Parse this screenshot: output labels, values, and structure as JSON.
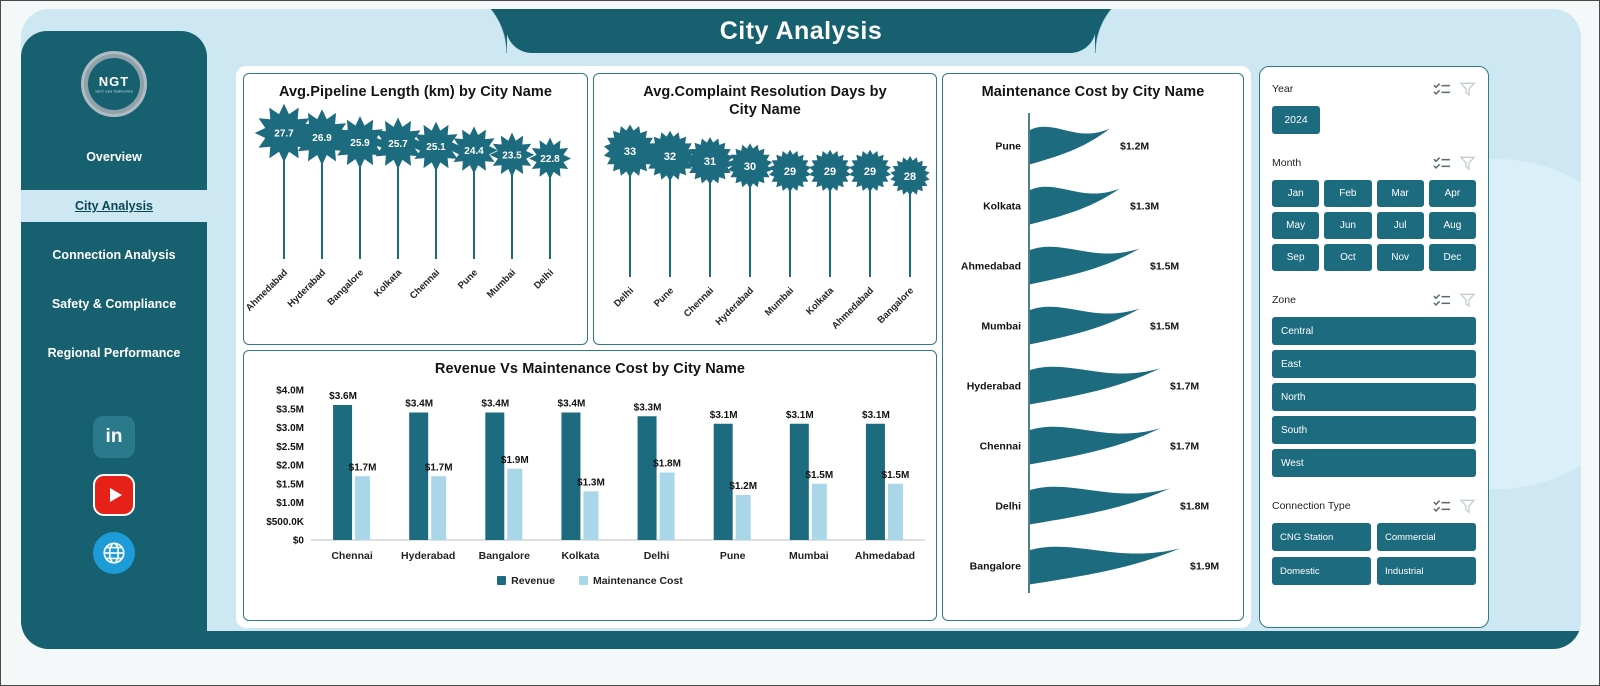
{
  "header": {
    "title": "City Analysis"
  },
  "sidebar": {
    "logo": {
      "text": "NGT",
      "caption": "NEXT GEN TEMPLATES"
    },
    "items": [
      {
        "label": "Overview",
        "active": false
      },
      {
        "label": "City Analysis",
        "active": true
      },
      {
        "label": "Connection Analysis",
        "active": false
      },
      {
        "label": "Safety & Compliance",
        "active": false
      },
      {
        "label": "Regional Performance",
        "active": false
      }
    ],
    "social_icons": [
      "linkedin-icon",
      "youtube-icon",
      "globe-icon"
    ]
  },
  "filters": {
    "year": {
      "label": "Year",
      "options": [
        "2024"
      ]
    },
    "month": {
      "label": "Month",
      "options": [
        "Jan",
        "Feb",
        "Mar",
        "Apr",
        "May",
        "Jun",
        "Jul",
        "Aug",
        "Sep",
        "Oct",
        "Nov",
        "Dec"
      ]
    },
    "zone": {
      "label": "Zone",
      "options": [
        "Central",
        "East",
        "North",
        "South",
        "West"
      ]
    },
    "connection_type": {
      "label": "Connection Type",
      "options": [
        "CNG Station",
        "Commercial",
        "Domestic",
        "Industrial"
      ]
    }
  },
  "colors": {
    "teal": "#1d6b7e",
    "teal_dark": "#17606f",
    "light_blue_bar": "#a9d6e8",
    "panel_blue": "#cde8f2"
  },
  "chart_data": [
    {
      "type": "bar",
      "subtype": "lollipop-star",
      "title": "Avg.Pipeline Length (km) by City Name",
      "categories": [
        "Ahmedabad",
        "Hyderabad",
        "Bangalore",
        "Kolkata",
        "Chennai",
        "Pune",
        "Mumbai",
        "Delhi"
      ],
      "values": [
        27.7,
        26.9,
        25.9,
        25.7,
        25.1,
        24.4,
        23.5,
        22.8
      ],
      "xlabel": "City Name",
      "ylabel": "Avg. Pipeline Length (km)",
      "grid": false,
      "legend_position": "none"
    },
    {
      "type": "bar",
      "subtype": "lollipop-burst",
      "title": "Avg.Complaint Resolution Days by City Name",
      "categories": [
        "Delhi",
        "Pune",
        "Chennai",
        "Hyderabad",
        "Mumbai",
        "Kolkata",
        "Ahmedabad",
        "Bangalore"
      ],
      "values": [
        33,
        32,
        31,
        30,
        29,
        29,
        29,
        28
      ],
      "xlabel": "City Name",
      "ylabel": "Avg. Complaint Resolution Days",
      "grid": false,
      "legend_position": "none"
    },
    {
      "type": "bar",
      "subtype": "grouped-column",
      "title": "Revenue Vs Maintenance Cost by City Name",
      "categories": [
        "Chennai",
        "Hyderabad",
        "Bangalore",
        "Kolkata",
        "Delhi",
        "Pune",
        "Mumbai",
        "Ahmedabad"
      ],
      "series": [
        {
          "name": "Revenue",
          "color": "#1d6b7e",
          "values": [
            3.6,
            3.4,
            3.4,
            3.4,
            3.3,
            3.1,
            3.1,
            3.1
          ],
          "labels": [
            "$3.6M",
            "$3.4M",
            "$3.4M",
            "$3.4M",
            "$3.3M",
            "$3.1M",
            "$3.1M",
            "$3.1M"
          ]
        },
        {
          "name": "Maintenance Cost",
          "color": "#a9d6e8",
          "values": [
            1.7,
            1.7,
            1.9,
            1.3,
            1.8,
            1.2,
            1.5,
            1.5
          ],
          "labels": [
            "$1.7M",
            "$1.7M",
            "$1.9M",
            "$1.3M",
            "$1.8M",
            "$1.2M",
            "$1.5M",
            "$1.5M"
          ]
        }
      ],
      "y_ticks": [
        "$4.0M",
        "$3.5M",
        "$3.0M",
        "$2.5M",
        "$2.0M",
        "$1.5M",
        "$1.0M",
        "$500.0K",
        "$0"
      ],
      "ylim": [
        0,
        4.0
      ],
      "grid": false,
      "legend_position": "bottom"
    },
    {
      "type": "bar",
      "subtype": "wave-funnel",
      "title": "Maintenance Cost by City Name",
      "categories": [
        "Pune",
        "Kolkata",
        "Ahmedabad",
        "Mumbai",
        "Hyderabad",
        "Chennai",
        "Delhi",
        "Bangalore"
      ],
      "values": [
        1.2,
        1.3,
        1.5,
        1.5,
        1.7,
        1.7,
        1.8,
        1.9
      ],
      "labels": [
        "$1.2M",
        "$1.3M",
        "$1.5M",
        "$1.5M",
        "$1.7M",
        "$1.7M",
        "$1.8M",
        "$1.9M"
      ],
      "xlabel": "Maintenance Cost",
      "ylabel": "City Name",
      "grid": false,
      "legend_position": "none"
    }
  ]
}
